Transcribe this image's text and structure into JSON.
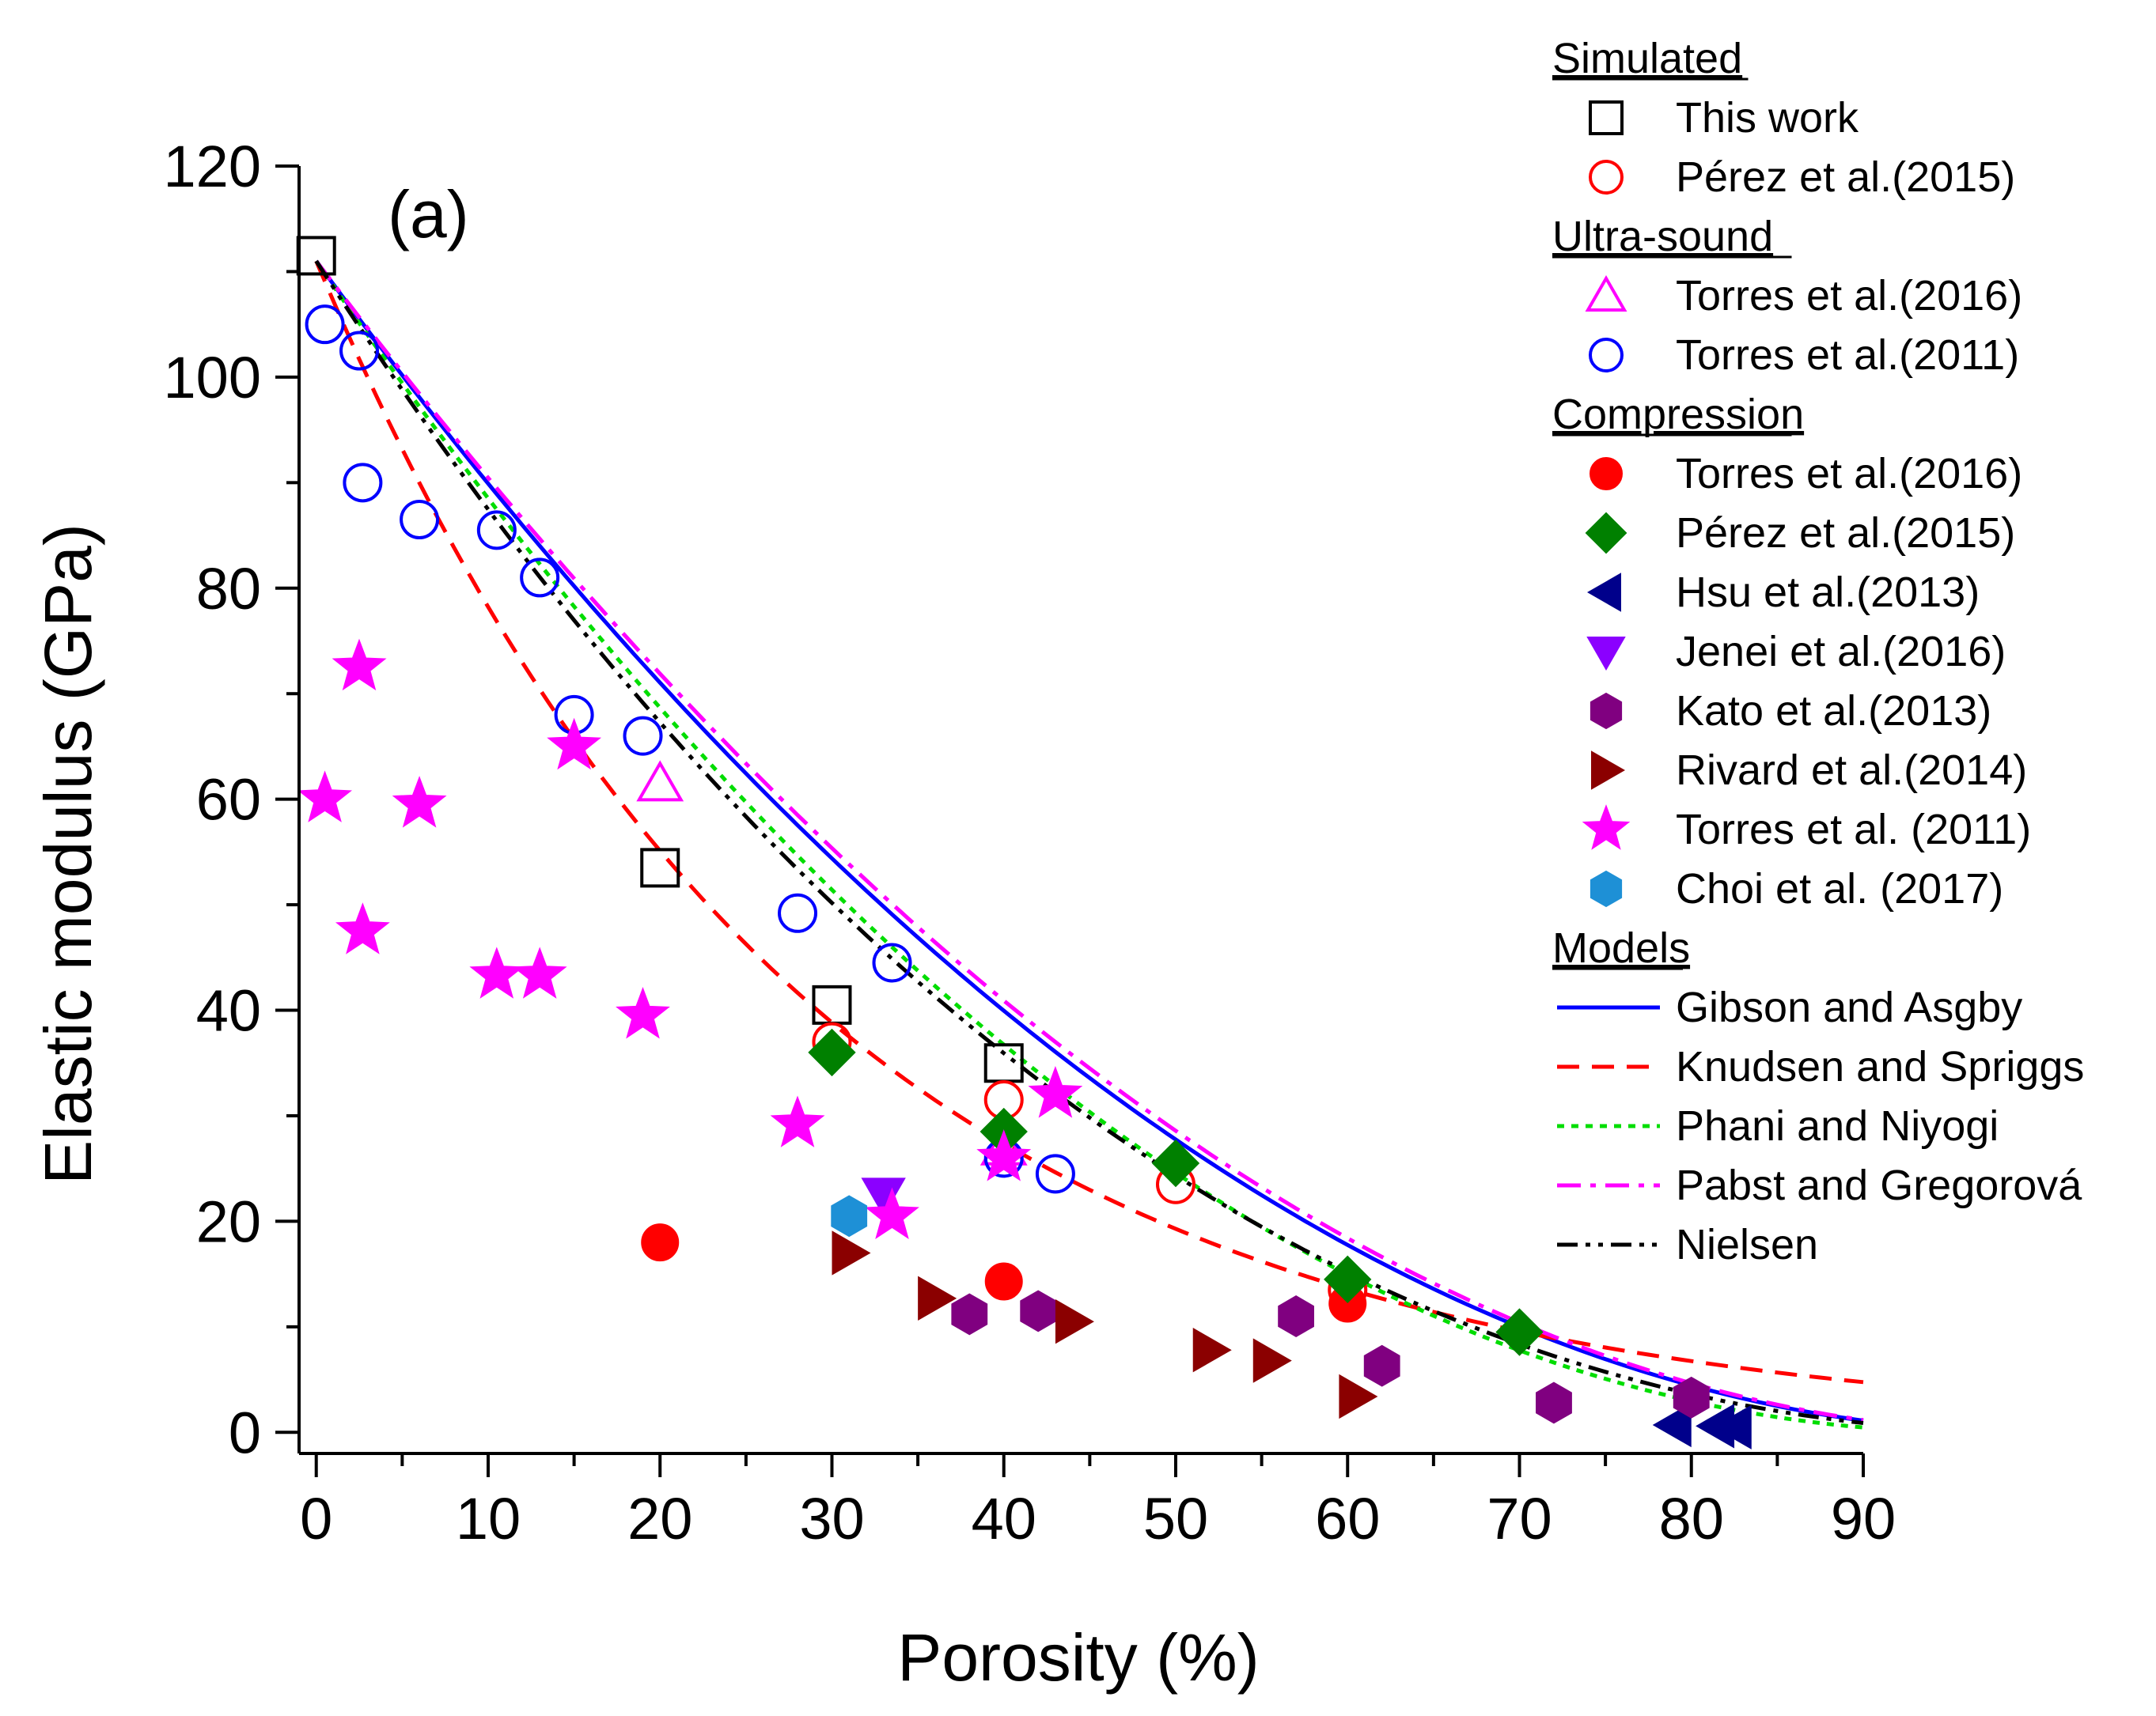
{
  "chart_data": {
    "type": "scatter",
    "panel_label": "(a)",
    "xlabel": "Porosity (%)",
    "ylabel": "Elastic modulus (GPa)",
    "xlim": [
      -1,
      90
    ],
    "ylim": [
      -2,
      120
    ],
    "xticks": [
      0,
      10,
      20,
      30,
      40,
      50,
      60,
      70,
      80,
      90
    ],
    "yticks": [
      0,
      20,
      40,
      60,
      80,
      100,
      120
    ],
    "x_tick_labels": [
      "0",
      "10",
      "20",
      "30",
      "40",
      "50",
      "60",
      "70",
      "80",
      "90"
    ],
    "y_tick_labels": [
      "0",
      "20",
      "40",
      "60",
      "80",
      "100",
      "120"
    ],
    "legend_position": "right",
    "groups": [
      {
        "title": "Simulated",
        "series": [
          {
            "name": "This work",
            "marker": "square",
            "filled": false,
            "color": "#000000",
            "points": [
              [
                0,
                111.5
              ],
              [
                20,
                53.5
              ],
              [
                30,
                40.5
              ],
              [
                40,
                35
              ]
            ]
          },
          {
            "name": "Pérez et al.(2015)",
            "marker": "circle",
            "filled": false,
            "color": "#ff0000",
            "points": [
              [
                30,
                37
              ],
              [
                40,
                31.5
              ],
              [
                50,
                23.5
              ],
              [
                60,
                13.5
              ]
            ]
          }
        ]
      },
      {
        "title": "Ultra-sound",
        "series": [
          {
            "name": "Torres et al.(2016)",
            "marker": "triangle-up",
            "filled": false,
            "color": "#ff00ff",
            "points": [
              [
                20,
                61.5
              ],
              [
                40,
                27
              ]
            ]
          },
          {
            "name": "Torres et al.(2011)",
            "marker": "circle",
            "filled": false,
            "color": "#0000ff",
            "points": [
              [
                0.5,
                105
              ],
              [
                2.5,
                102.5
              ],
              [
                2.7,
                90
              ],
              [
                6,
                86.5
              ],
              [
                10.5,
                85.5
              ],
              [
                13,
                81
              ],
              [
                15,
                68
              ],
              [
                19,
                66
              ],
              [
                28,
                49.2
              ],
              [
                33.5,
                44.5
              ],
              [
                40,
                26
              ],
              [
                43,
                24.5
              ]
            ]
          }
        ]
      },
      {
        "title": "Compression",
        "series": [
          {
            "name": "Torres et al.(2016)",
            "marker": "circle",
            "filled": true,
            "color": "#ff0000",
            "points": [
              [
                20,
                18
              ],
              [
                40,
                14.3
              ],
              [
                60,
                12.2
              ]
            ]
          },
          {
            "name": "Pérez et al.(2015)",
            "marker": "diamond",
            "filled": true,
            "color": "#008000",
            "points": [
              [
                30,
                36
              ],
              [
                40,
                28.5
              ],
              [
                50,
                25.5
              ],
              [
                60,
                14.5
              ],
              [
                70,
                9.5
              ]
            ]
          },
          {
            "name": "Hsu et al.(2013)",
            "marker": "triangle-left",
            "filled": true,
            "color": "#00008b",
            "points": [
              [
                79,
                0.7
              ],
              [
                81.5,
                0.6
              ],
              [
                82.5,
                0.5
              ]
            ]
          },
          {
            "name": "Jenei et al.(2016)",
            "marker": "triangle-down",
            "filled": true,
            "color": "#8b00ff",
            "points": [
              [
                33,
                22.5
              ]
            ]
          },
          {
            "name": "Kato et al.(2013)",
            "marker": "hexagon",
            "filled": true,
            "color": "#800080",
            "points": [
              [
                38,
                11.2
              ],
              [
                42,
                11.5
              ],
              [
                57,
                11
              ],
              [
                62,
                6.3
              ],
              [
                72,
                2.8
              ],
              [
                80,
                3.3
              ]
            ]
          },
          {
            "name": "Rivard et al.(2014)",
            "marker": "triangle-right",
            "filled": true,
            "color": "#8b0000",
            "points": [
              [
                31,
                17
              ],
              [
                36,
                12.7
              ],
              [
                44,
                10.5
              ],
              [
                52,
                7.8
              ],
              [
                55.5,
                6.8
              ],
              [
                60.5,
                3.4
              ]
            ]
          },
          {
            "name": "Torres et al. (2011)",
            "marker": "star",
            "filled": true,
            "color": "#ff00ff",
            "points": [
              [
                0.5,
                60
              ],
              [
                2.5,
                72.5
              ],
              [
                2.7,
                47.5
              ],
              [
                6,
                59.5
              ],
              [
                10.5,
                43.3
              ],
              [
                13,
                43.3
              ],
              [
                15,
                65
              ],
              [
                19,
                39.5
              ],
              [
                28,
                29.2
              ],
              [
                33.5,
                20.5
              ],
              [
                40,
                26
              ],
              [
                43,
                32
              ]
            ]
          },
          {
            "name": "Choi et al. (2017)",
            "marker": "hexagon",
            "filled": true,
            "color": "#1e90d6",
            "points": [
              [
                31,
                20.5
              ]
            ]
          }
        ]
      },
      {
        "title": "Models",
        "series": [
          {
            "name": "Gibson and Asgby",
            "line": "solid",
            "color": "#0000ff"
          },
          {
            "name": "Knudsen and Spriggs",
            "line": "dash",
            "color": "#ff0000"
          },
          {
            "name": "Phani and Niyogi",
            "line": "dot",
            "color": "#00dd00"
          },
          {
            "name": "Pabst and Gregorová",
            "line": "dashdot",
            "color": "#ff00ff"
          },
          {
            "name": "Nielsen",
            "line": "dashdotdot",
            "color": "#000000"
          }
        ]
      }
    ]
  }
}
